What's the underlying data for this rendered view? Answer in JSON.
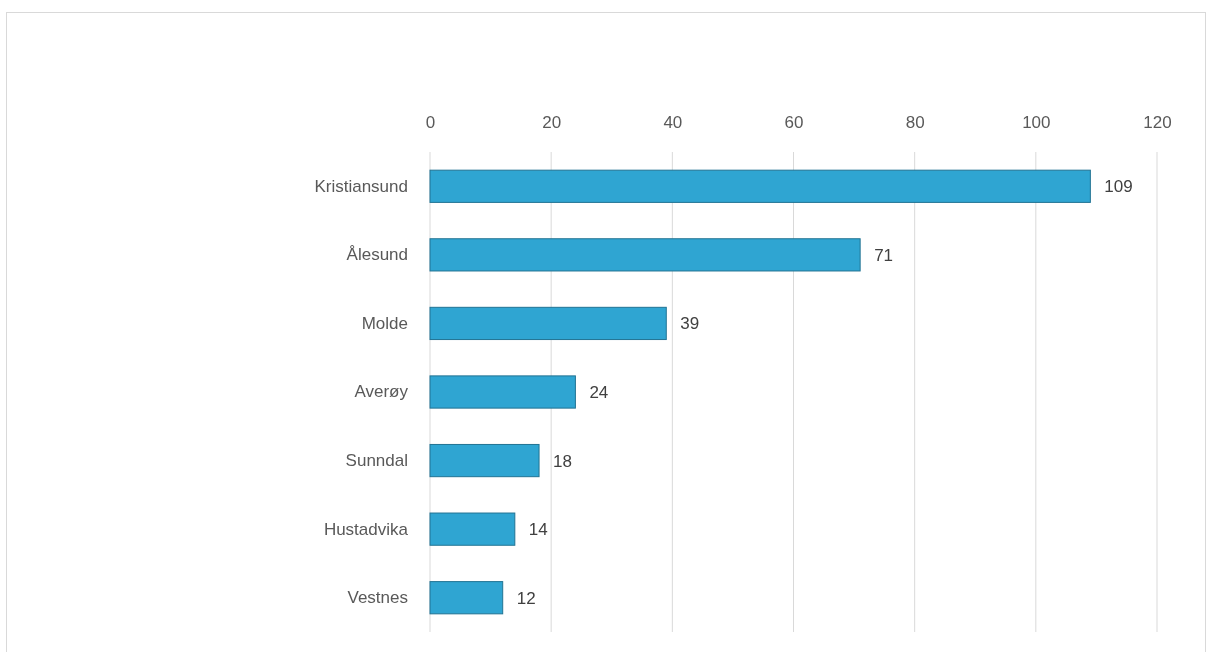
{
  "chart_data": {
    "type": "bar",
    "orientation": "horizontal",
    "categories": [
      "Kristiansund",
      "Ålesund",
      "Molde",
      "Averøy",
      "Sunndal",
      "Hustadvika",
      "Vestnes"
    ],
    "values": [
      109,
      71,
      39,
      24,
      18,
      14,
      12
    ],
    "color": "#2fa5d2",
    "xlim": [
      0,
      120
    ],
    "xticks": [
      0,
      20,
      40,
      60,
      80,
      100,
      120
    ],
    "grid": "x",
    "data_labels": true
  }
}
